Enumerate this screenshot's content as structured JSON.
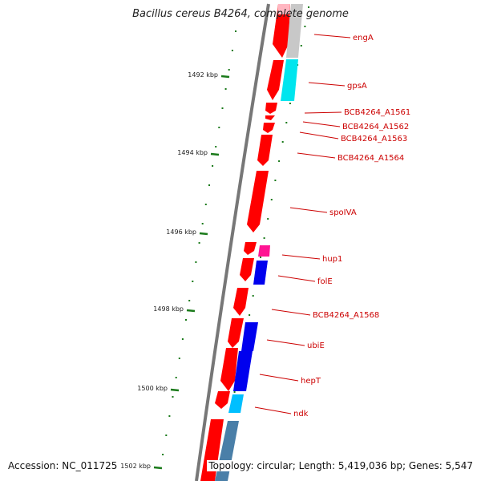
{
  "title": "Bacillus cereus B4264, complete genome",
  "footer": {
    "accession": "Accession: NC_011725",
    "summary": "Topology: circular; Length: 5,419,036 bp; Genes: 5,547"
  },
  "scale_ticks": [
    {
      "label": "1492 kbp"
    },
    {
      "label": "1494 kbp"
    },
    {
      "label": "1496 kbp"
    },
    {
      "label": "1498 kbp"
    },
    {
      "label": "1500 kbp"
    },
    {
      "label": "1502 kbp"
    }
  ],
  "gene_labels": [
    {
      "name": "engA"
    },
    {
      "name": "gpsA"
    },
    {
      "name": "BCB4264_A1561"
    },
    {
      "name": "BCB4264_A1562"
    },
    {
      "name": "BCB4264_A1563"
    },
    {
      "name": "BCB4264_A1564"
    },
    {
      "name": "spoIVA"
    },
    {
      "name": "hup1"
    },
    {
      "name": "folE"
    },
    {
      "name": "BCB4264_A1568"
    },
    {
      "name": "ubiE"
    },
    {
      "name": "hepT"
    },
    {
      "name": "ndk"
    }
  ],
  "colors": {
    "gene_red": "#ff0000",
    "label_red": "#cc0000",
    "tick_green": "#1a7a1a",
    "backbone": "#777777",
    "cyan": "#00e5ee",
    "blue": "#0000ee",
    "magenta": "#ff1493",
    "light_gray": "#c8c8c8",
    "steel_blue": "#4a7fa8"
  }
}
